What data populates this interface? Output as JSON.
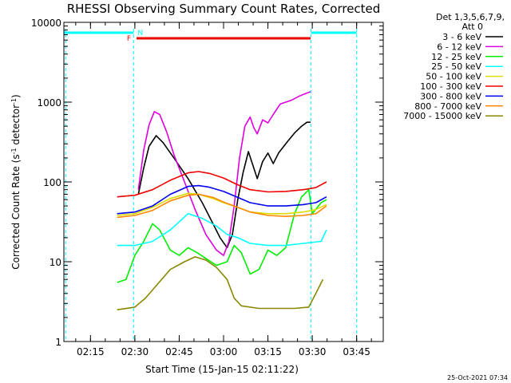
{
  "chart_data": {
    "type": "line",
    "title": "RHESSI Observing Summary Count Rates, Corrected",
    "xlabel": "Start Time (15-Jan-15 02:11:22)",
    "ylabel": "Corrected Count Rate (s⁻¹ detector⁻¹)",
    "ylabel_parts": [
      "Corrected Count Rate (s",
      "-1",
      " detector",
      "-1",
      ")"
    ],
    "xlim": [
      2.1,
      3.9
    ],
    "ylim": [
      1,
      10000
    ],
    "y_scale": "log",
    "x_ticks": [
      {
        "t": 2.25,
        "label": "02:15"
      },
      {
        "t": 2.5,
        "label": "02:30"
      },
      {
        "t": 2.75,
        "label": "02:45"
      },
      {
        "t": 3.0,
        "label": "03:00"
      },
      {
        "t": 3.25,
        "label": "03:15"
      },
      {
        "t": 3.5,
        "label": "03:30"
      },
      {
        "t": 3.75,
        "label": "03:45"
      }
    ],
    "y_ticks": [
      {
        "v": 1,
        "label": "1"
      },
      {
        "v": 10,
        "label": "10"
      },
      {
        "v": 100,
        "label": "100"
      },
      {
        "v": 1000,
        "label": "1000"
      },
      {
        "v": 10000,
        "label": "10000"
      }
    ],
    "legend_position": "right",
    "legend_header": [
      "Det 1,3,5,6,7,9,",
      "Att 0"
    ],
    "timestamp": "25-Oct-2021 07:34",
    "flags": {
      "night_bars": [
        [
          2.1,
          2.493
        ],
        [
          3.493,
          3.75
        ]
      ],
      "flare_bar": [
        2.51,
        3.49
      ],
      "flare_label": "F",
      "saa_label": "N",
      "saa_lines": [
        2.11,
        2.493,
        3.493,
        3.75
      ],
      "night_color": "#00ffff",
      "flare_color": "#ee0000"
    },
    "series": [
      {
        "name": "3 - 6 keV",
        "color": "#000000",
        "points": [
          [
            2.52,
            70
          ],
          [
            2.55,
            150
          ],
          [
            2.58,
            280
          ],
          [
            2.62,
            380
          ],
          [
            2.66,
            310
          ],
          [
            2.72,
            200
          ],
          [
            2.8,
            110
          ],
          [
            2.88,
            55
          ],
          [
            2.94,
            30
          ],
          [
            2.98,
            20
          ],
          [
            3.02,
            15
          ],
          [
            3.05,
            22
          ],
          [
            3.08,
            60
          ],
          [
            3.11,
            130
          ],
          [
            3.14,
            240
          ],
          [
            3.17,
            150
          ],
          [
            3.19,
            110
          ],
          [
            3.22,
            180
          ],
          [
            3.25,
            230
          ],
          [
            3.28,
            170
          ],
          [
            3.31,
            230
          ],
          [
            3.36,
            320
          ],
          [
            3.4,
            410
          ],
          [
            3.44,
            500
          ],
          [
            3.47,
            560
          ],
          [
            3.49,
            560
          ]
        ]
      },
      {
        "name": "6 - 12 keV",
        "color": "#dd00dd",
        "points": [
          [
            2.52,
            80
          ],
          [
            2.55,
            250
          ],
          [
            2.58,
            520
          ],
          [
            2.61,
            760
          ],
          [
            2.64,
            700
          ],
          [
            2.68,
            420
          ],
          [
            2.72,
            220
          ],
          [
            2.78,
            100
          ],
          [
            2.84,
            45
          ],
          [
            2.9,
            22
          ],
          [
            2.96,
            14
          ],
          [
            3.0,
            12
          ],
          [
            3.03,
            18
          ],
          [
            3.06,
            50
          ],
          [
            3.09,
            200
          ],
          [
            3.12,
            500
          ],
          [
            3.15,
            650
          ],
          [
            3.17,
            480
          ],
          [
            3.19,
            400
          ],
          [
            3.22,
            600
          ],
          [
            3.25,
            550
          ],
          [
            3.28,
            700
          ],
          [
            3.32,
            950
          ],
          [
            3.38,
            1050
          ],
          [
            3.43,
            1200
          ],
          [
            3.47,
            1300
          ],
          [
            3.49,
            1350
          ]
        ]
      },
      {
        "name": "12 - 25 keV",
        "color": "#00ee00",
        "points": [
          [
            2.4,
            5.5
          ],
          [
            2.45,
            6
          ],
          [
            2.5,
            12
          ],
          [
            2.55,
            18
          ],
          [
            2.6,
            30
          ],
          [
            2.64,
            25
          ],
          [
            2.7,
            14
          ],
          [
            2.75,
            12
          ],
          [
            2.8,
            15
          ],
          [
            2.85,
            13
          ],
          [
            2.9,
            11
          ],
          [
            2.96,
            9
          ],
          [
            3.02,
            10
          ],
          [
            3.06,
            16
          ],
          [
            3.1,
            13
          ],
          [
            3.15,
            7
          ],
          [
            3.2,
            8
          ],
          [
            3.25,
            14
          ],
          [
            3.3,
            12
          ],
          [
            3.35,
            15
          ],
          [
            3.4,
            40
          ],
          [
            3.44,
            65
          ],
          [
            3.48,
            80
          ],
          [
            3.5,
            40
          ],
          [
            3.55,
            55
          ],
          [
            3.58,
            60
          ]
        ]
      },
      {
        "name": "25 - 50 keV",
        "color": "#00ffff",
        "points": [
          [
            2.4,
            16
          ],
          [
            2.5,
            16
          ],
          [
            2.6,
            18
          ],
          [
            2.7,
            25
          ],
          [
            2.8,
            40
          ],
          [
            2.88,
            35
          ],
          [
            2.96,
            28
          ],
          [
            3.02,
            22
          ],
          [
            3.08,
            20
          ],
          [
            3.15,
            17
          ],
          [
            3.25,
            16
          ],
          [
            3.35,
            16
          ],
          [
            3.45,
            17
          ],
          [
            3.55,
            18
          ],
          [
            3.58,
            25
          ]
        ]
      },
      {
        "name": "50 - 100 keV",
        "color": "#dddd00",
        "points": [
          [
            2.4,
            38
          ],
          [
            2.5,
            40
          ],
          [
            2.6,
            48
          ],
          [
            2.7,
            62
          ],
          [
            2.8,
            72
          ],
          [
            2.86,
            70
          ],
          [
            2.94,
            62
          ],
          [
            3.0,
            55
          ],
          [
            3.08,
            48
          ],
          [
            3.15,
            42
          ],
          [
            3.25,
            40
          ],
          [
            3.35,
            40
          ],
          [
            3.45,
            42
          ],
          [
            3.52,
            45
          ],
          [
            3.58,
            52
          ]
        ]
      },
      {
        "name": "100 - 300 keV",
        "color": "#ee0000",
        "points": [
          [
            2.4,
            65
          ],
          [
            2.5,
            68
          ],
          [
            2.6,
            80
          ],
          [
            2.7,
            105
          ],
          [
            2.8,
            130
          ],
          [
            2.86,
            135
          ],
          [
            2.92,
            128
          ],
          [
            3.0,
            112
          ],
          [
            3.08,
            92
          ],
          [
            3.15,
            80
          ],
          [
            3.25,
            75
          ],
          [
            3.35,
            76
          ],
          [
            3.45,
            80
          ],
          [
            3.52,
            85
          ],
          [
            3.58,
            100
          ]
        ]
      },
      {
        "name": "300 - 800 keV",
        "color": "#0000ee",
        "points": [
          [
            2.4,
            40
          ],
          [
            2.5,
            42
          ],
          [
            2.6,
            50
          ],
          [
            2.7,
            70
          ],
          [
            2.8,
            88
          ],
          [
            2.86,
            90
          ],
          [
            2.92,
            86
          ],
          [
            3.0,
            76
          ],
          [
            3.08,
            64
          ],
          [
            3.15,
            55
          ],
          [
            3.25,
            50
          ],
          [
            3.35,
            50
          ],
          [
            3.45,
            52
          ],
          [
            3.52,
            55
          ],
          [
            3.58,
            65
          ]
        ]
      },
      {
        "name": "800 - 7000 keV",
        "color": "#ff8800",
        "points": [
          [
            2.4,
            36
          ],
          [
            2.5,
            38
          ],
          [
            2.6,
            44
          ],
          [
            2.7,
            58
          ],
          [
            2.8,
            68
          ],
          [
            2.86,
            70
          ],
          [
            2.94,
            64
          ],
          [
            3.0,
            56
          ],
          [
            3.08,
            48
          ],
          [
            3.15,
            42
          ],
          [
            3.25,
            38
          ],
          [
            3.35,
            37
          ],
          [
            3.45,
            38
          ],
          [
            3.52,
            40
          ],
          [
            3.58,
            50
          ]
        ]
      },
      {
        "name": "7000 - 15000 keV",
        "color": "#888800",
        "points": [
          [
            2.4,
            2.5
          ],
          [
            2.5,
            2.7
          ],
          [
            2.56,
            3.5
          ],
          [
            2.62,
            5
          ],
          [
            2.7,
            8
          ],
          [
            2.78,
            10
          ],
          [
            2.84,
            11.5
          ],
          [
            2.9,
            10.5
          ],
          [
            2.96,
            8.5
          ],
          [
            3.02,
            6
          ],
          [
            3.06,
            3.5
          ],
          [
            3.1,
            2.8
          ],
          [
            3.2,
            2.6
          ],
          [
            3.3,
            2.6
          ],
          [
            3.4,
            2.6
          ],
          [
            3.48,
            2.7
          ],
          [
            3.52,
            4
          ],
          [
            3.56,
            6
          ]
        ]
      }
    ]
  }
}
